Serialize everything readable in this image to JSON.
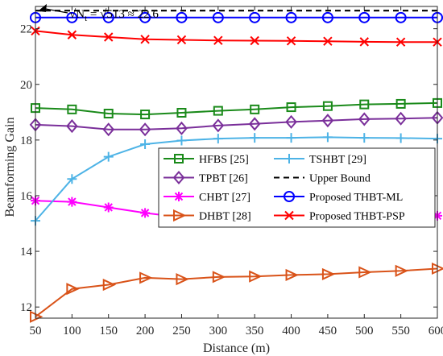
{
  "chart_data": {
    "type": "line",
    "xlabel": "Distance (m)",
    "ylabel": "Beamforming Gain",
    "xlim": [
      50,
      600
    ],
    "ylim": [
      11.6,
      22.8
    ],
    "x_ticks": [
      50,
      100,
      150,
      200,
      250,
      300,
      350,
      400,
      450,
      500,
      550,
      600
    ],
    "y_ticks": [
      12,
      14,
      16,
      18,
      20,
      22
    ],
    "grid": false,
    "legend_position": "center-right",
    "annotation": {
      "lhs": "√N",
      "lhs_sub": "t",
      "rhs": " = √513 ≈ 22.6",
      "x": 50,
      "y": 22.63
    },
    "x": [
      50,
      100,
      150,
      200,
      250,
      300,
      350,
      400,
      450,
      500,
      550,
      600
    ],
    "series": [
      {
        "name": "HFBS [25]",
        "color": "#1a8a1a",
        "marker": "square",
        "values": [
          19.15,
          19.1,
          18.95,
          18.92,
          18.98,
          19.05,
          19.1,
          19.18,
          19.22,
          19.28,
          19.3,
          19.33
        ]
      },
      {
        "name": "TPBT [26]",
        "color": "#7a2f9a",
        "marker": "diamond",
        "values": [
          18.55,
          18.5,
          18.38,
          18.38,
          18.42,
          18.52,
          18.58,
          18.65,
          18.7,
          18.75,
          18.77,
          18.8
        ]
      },
      {
        "name": "CHBT [27]",
        "color": "#ff00ff",
        "marker": "asterisk",
        "values": [
          15.82,
          15.78,
          15.58,
          15.38,
          15.22,
          15.1,
          15.12,
          15.1,
          15.15,
          15.18,
          15.22,
          15.28
        ]
      },
      {
        "name": "DHBT [28]",
        "color": "#d95319",
        "marker": "triangle-right",
        "values": [
          11.65,
          12.65,
          12.8,
          13.05,
          13.0,
          13.08,
          13.1,
          13.15,
          13.18,
          13.25,
          13.3,
          13.38
        ]
      },
      {
        "name": "TSHBT [29]",
        "color": "#4db3e6",
        "marker": "plus",
        "values": [
          15.1,
          16.6,
          17.4,
          17.85,
          17.98,
          18.05,
          18.08,
          18.08,
          18.1,
          18.08,
          18.07,
          18.05
        ]
      },
      {
        "name": "Upper Bound",
        "color": "#000000",
        "marker": "none",
        "dashed": true,
        "values": [
          22.65,
          22.65,
          22.65,
          22.65,
          22.65,
          22.65,
          22.65,
          22.65,
          22.65,
          22.65,
          22.65,
          22.65
        ]
      },
      {
        "name": "Proposed THBT-ML",
        "color": "#0000ff",
        "marker": "circle",
        "values": [
          22.4,
          22.4,
          22.4,
          22.4,
          22.4,
          22.4,
          22.4,
          22.4,
          22.4,
          22.4,
          22.4,
          22.4
        ]
      },
      {
        "name": "Proposed THBT-PSP",
        "color": "#ff0000",
        "marker": "x",
        "values": [
          21.92,
          21.78,
          21.7,
          21.62,
          21.6,
          21.58,
          21.57,
          21.56,
          21.55,
          21.53,
          21.52,
          21.52
        ]
      }
    ]
  }
}
